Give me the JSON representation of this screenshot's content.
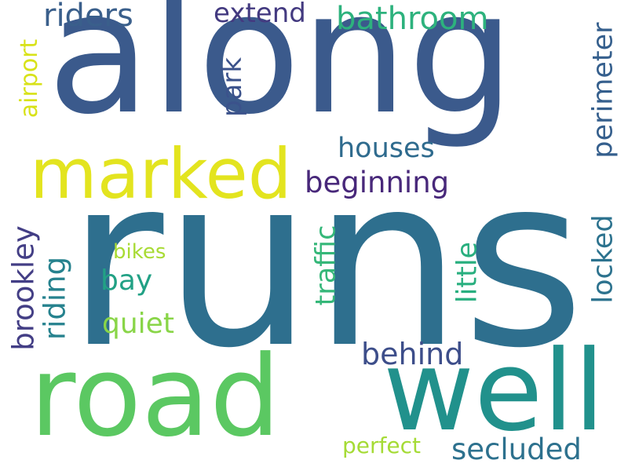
{
  "cloud": {
    "words": {
      "along": {
        "text": "along",
        "color": "#3b5a8c"
      },
      "runs": {
        "text": "runs",
        "color": "#2e6f8e"
      },
      "road": {
        "text": "road",
        "color": "#5bc862"
      },
      "well": {
        "text": "well",
        "color": "#21918c"
      },
      "marked": {
        "text": "marked",
        "color": "#e3e41f"
      },
      "riders": {
        "text": "riders",
        "color": "#3a5f8b"
      },
      "extend": {
        "text": "extend",
        "color": "#433a80"
      },
      "bathroom": {
        "text": "bathroom",
        "color": "#2db27d"
      },
      "houses": {
        "text": "houses",
        "color": "#2f6b8e"
      },
      "beginning": {
        "text": "beginning",
        "color": "#48287a"
      },
      "bikes": {
        "text": "bikes",
        "color": "#a8db34"
      },
      "bay": {
        "text": "bay",
        "color": "#22a185"
      },
      "quiet": {
        "text": "quiet",
        "color": "#89d548"
      },
      "behind": {
        "text": "behind",
        "color": "#3d4e8a"
      },
      "perfect": {
        "text": "perfect",
        "color": "#a5db36"
      },
      "secluded": {
        "text": "secluded",
        "color": "#2d718e"
      },
      "airport": {
        "text": "airport",
        "color": "#d8e219"
      },
      "park": {
        "text": "park",
        "color": "#3b528b"
      },
      "perimeter": {
        "text": "perimeter",
        "color": "#355f8d"
      },
      "locked": {
        "text": "locked",
        "color": "#2c728e"
      },
      "brookley": {
        "text": "brookley",
        "color": "#433e85"
      },
      "riding": {
        "text": "riding",
        "color": "#26828e"
      },
      "traffic": {
        "text": "traffic",
        "color": "#35b779"
      },
      "little": {
        "text": "little",
        "color": "#29af7f"
      }
    }
  }
}
